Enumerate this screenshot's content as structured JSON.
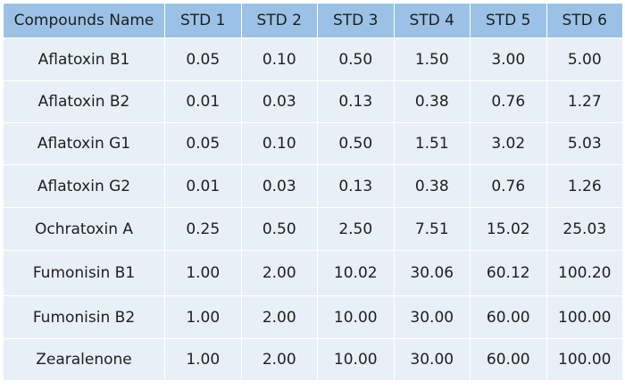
{
  "table": {
    "header": [
      "Compounds Name",
      "STD 1",
      "STD 2",
      "STD 3",
      "STD 4",
      "STD 5",
      "STD 6"
    ],
    "rows": [
      [
        "Aflatoxin B1",
        "0.05",
        "0.10",
        "0.50",
        "1.50",
        "3.00",
        "5.00"
      ],
      [
        "Aflatoxin B2",
        "0.01",
        "0.03",
        "0.13",
        "0.38",
        "0.76",
        "1.27"
      ],
      [
        "Aflatoxin G1",
        "0.05",
        "0.10",
        "0.50",
        "1.51",
        "3.02",
        "5.03"
      ],
      [
        "Aflatoxin G2",
        "0.01",
        "0.03",
        "0.13",
        "0.38",
        "0.76",
        "1.26"
      ],
      [
        "Ochratoxin A",
        "0.25",
        "0.50",
        "2.50",
        "7.51",
        "15.02",
        "25.03"
      ],
      [
        "Fumonisin B1",
        "1.00",
        "2.00",
        "10.02",
        "30.06",
        "60.12",
        "100.20"
      ],
      [
        "Fumonisin B2",
        "1.00",
        "2.00",
        "10.00",
        "30.00",
        "60.00",
        "100.00"
      ],
      [
        "Zearalenone",
        "1.00",
        "2.00",
        "10.00",
        "30.00",
        "60.00",
        "100.00"
      ]
    ],
    "colors": {
      "header_bg": "#9bc2e6",
      "row_bg": "#e9eff7",
      "border": "#ffffff"
    }
  }
}
